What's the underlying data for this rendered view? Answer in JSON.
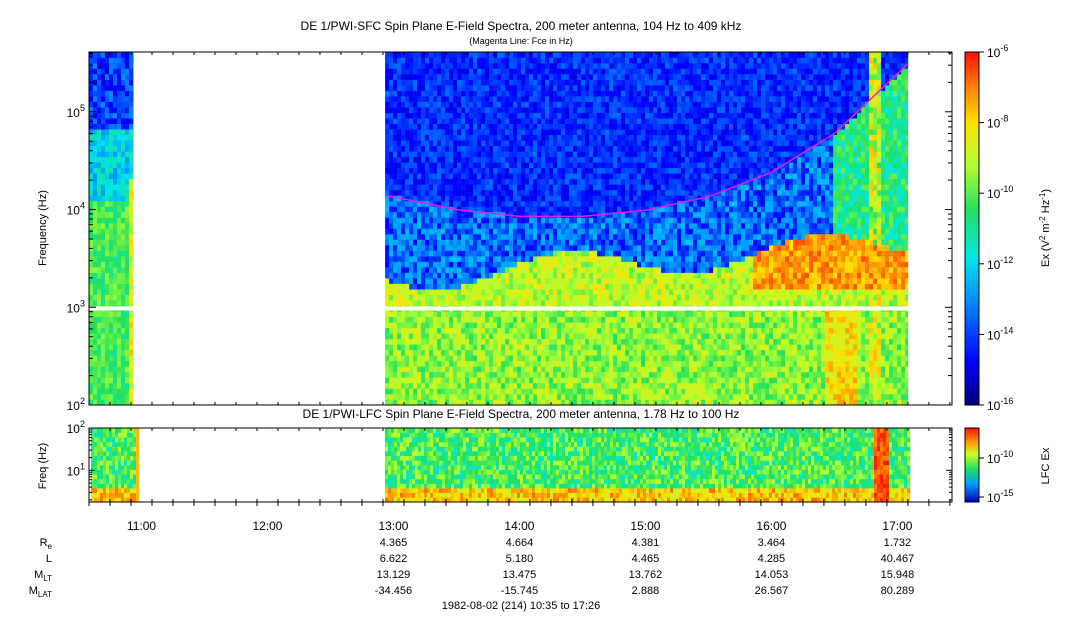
{
  "chart_data": [
    {
      "type": "heatmap",
      "title": "DE 1/PWI-SFC  Spin Plane E-Field Spectra, 200 meter antenna, 104 Hz to 409 kHz",
      "subtitle": "(Magenta Line: Fce in Hz)",
      "ylabel": "Frequency (Hz)",
      "yscale": "log",
      "ylim": [
        100,
        409000
      ],
      "yticks": [
        {
          "value": 100,
          "base": "10",
          "exp": "2"
        },
        {
          "value": 1000,
          "base": "10",
          "exp": "3"
        },
        {
          "value": 10000,
          "base": "10",
          "exp": "4"
        },
        {
          "value": 100000,
          "base": "10",
          "exp": "5"
        }
      ],
      "xlim": [
        "10:35",
        "17:26"
      ],
      "data_gaps": [
        [
          "10:56",
          "12:56"
        ]
      ],
      "data_coverage": [
        [
          "10:35",
          "10:56"
        ],
        [
          "12:56",
          "17:05"
        ]
      ],
      "colorbar": {
        "label": "Ex (V2 m-2 Hz-1)",
        "scale": "log",
        "range": [
          1e-16,
          1e-06
        ],
        "ticks": [
          {
            "base": "10",
            "exp": "-6"
          },
          {
            "base": "10",
            "exp": "-8"
          },
          {
            "base": "10",
            "exp": "-10"
          },
          {
            "base": "10",
            "exp": "-12"
          },
          {
            "base": "10",
            "exp": "-14"
          },
          {
            "base": "10",
            "exp": "-16"
          }
        ]
      },
      "overlay_line": {
        "name": "Fce",
        "color": "#e020e0",
        "points": [
          {
            "time": "12:56",
            "freq": 14000
          },
          {
            "time": "13:30",
            "freq": 10000
          },
          {
            "time": "14:00",
            "freq": 8500
          },
          {
            "time": "14:30",
            "freq": 8500
          },
          {
            "time": "15:00",
            "freq": 9800
          },
          {
            "time": "15:30",
            "freq": 13500
          },
          {
            "time": "16:00",
            "freq": 24000
          },
          {
            "time": "16:30",
            "freq": 60000
          },
          {
            "time": "17:05",
            "freq": 310000
          }
        ]
      }
    },
    {
      "type": "heatmap",
      "title": "DE 1/PWI-LFC  Spin Plane E-Field Spectra, 200 meter antenna, 1.78 Hz to 100 Hz",
      "ylabel": "Freq (Hz)",
      "yscale": "log",
      "ylim": [
        1.78,
        100
      ],
      "yticks": [
        {
          "value": 10,
          "base": "10",
          "exp": "1"
        },
        {
          "value": 100,
          "base": "10",
          "exp": "2"
        }
      ],
      "xlim": [
        "10:35",
        "17:26"
      ],
      "data_gaps": [
        [
          "10:58",
          "12:55"
        ]
      ],
      "colorbar": {
        "label": "LFC Ex",
        "scale": "log",
        "ticks": [
          {
            "base": "10",
            "exp": "-10"
          },
          {
            "base": "10",
            "exp": "-15"
          }
        ]
      }
    }
  ],
  "x_axis": {
    "ticks": [
      "11:00",
      "12:00",
      "13:00",
      "14:00",
      "15:00",
      "16:00",
      "17:00"
    ]
  },
  "ephemeris": {
    "rows": [
      {
        "label": "R",
        "sub": "e",
        "values": [
          "4.365",
          "4.664",
          "4.381",
          "3.464",
          "1.732"
        ]
      },
      {
        "label": "L",
        "sub": "",
        "values": [
          "6.622",
          "5.180",
          "4.465",
          "4.285",
          "40.467"
        ]
      },
      {
        "label": "M",
        "sub": "LT",
        "values": [
          "13.129",
          "13.475",
          "13.762",
          "14.053",
          "15.948"
        ]
      },
      {
        "label": "M",
        "sub": "LAT",
        "values": [
          "-34.456",
          "-15.745",
          "2.888",
          "26.567",
          "80.289"
        ]
      }
    ],
    "columns": [
      "13:00",
      "14:00",
      "15:00",
      "16:00",
      "17:00"
    ]
  },
  "footer": "1982-08-02 (214) 10:35 to 17:26"
}
